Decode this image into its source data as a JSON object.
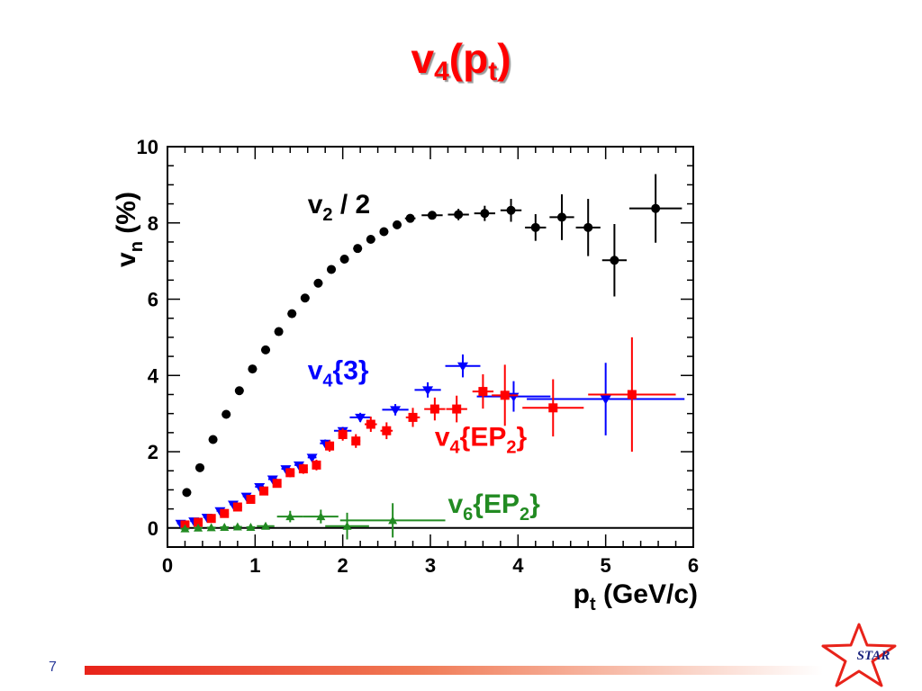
{
  "slide": {
    "title_main": "v",
    "title_sub1": "4",
    "title_paren_open": "(p",
    "title_sub2": "t",
    "title_paren_close": ")",
    "page_number": "7",
    "logo_text": "STAR"
  },
  "colors": {
    "title": "#ff0000",
    "black_series": "#000000",
    "blue_series": "#0000ff",
    "red_series": "#ff0000",
    "green_series": "#228b22"
  },
  "chart_data": {
    "type": "scatter",
    "xlim": [
      0,
      6
    ],
    "ylim": [
      -0.5,
      10
    ],
    "x_ticks": [
      "0",
      "1",
      "2",
      "3",
      "4",
      "5",
      "6"
    ],
    "y_ticks": [
      "0",
      "2",
      "4",
      "6",
      "8",
      "10"
    ],
    "xlabel": {
      "main": "p",
      "sub": "t",
      "rest": " (GeV/c)"
    },
    "ylabel": {
      "main": "v",
      "sub": "n",
      "rest": " (%)"
    },
    "reference_line_y": 0,
    "series": [
      {
        "name": {
          "main": "v",
          "sub": "2",
          "rest": " / 2"
        },
        "color": "#000000",
        "marker": "circle",
        "points": [
          {
            "x": 0.22,
            "y": 0.93,
            "xerr": 0.05,
            "yerr": 0.05
          },
          {
            "x": 0.37,
            "y": 1.58,
            "xerr": 0.05,
            "yerr": 0.05
          },
          {
            "x": 0.52,
            "y": 2.32,
            "xerr": 0.05,
            "yerr": 0.05
          },
          {
            "x": 0.67,
            "y": 2.98,
            "xerr": 0.05,
            "yerr": 0.05
          },
          {
            "x": 0.82,
            "y": 3.6,
            "xerr": 0.05,
            "yerr": 0.05
          },
          {
            "x": 0.97,
            "y": 4.17,
            "xerr": 0.05,
            "yerr": 0.05
          },
          {
            "x": 1.12,
            "y": 4.67,
            "xerr": 0.05,
            "yerr": 0.05
          },
          {
            "x": 1.27,
            "y": 5.15,
            "xerr": 0.05,
            "yerr": 0.05
          },
          {
            "x": 1.42,
            "y": 5.62,
            "xerr": 0.05,
            "yerr": 0.05
          },
          {
            "x": 1.57,
            "y": 6.03,
            "xerr": 0.05,
            "yerr": 0.05
          },
          {
            "x": 1.72,
            "y": 6.42,
            "xerr": 0.05,
            "yerr": 0.05
          },
          {
            "x": 1.87,
            "y": 6.78,
            "xerr": 0.05,
            "yerr": 0.05
          },
          {
            "x": 2.02,
            "y": 7.05,
            "xerr": 0.05,
            "yerr": 0.05
          },
          {
            "x": 2.17,
            "y": 7.33,
            "xerr": 0.05,
            "yerr": 0.05
          },
          {
            "x": 2.32,
            "y": 7.57,
            "xerr": 0.05,
            "yerr": 0.05
          },
          {
            "x": 2.47,
            "y": 7.77,
            "xerr": 0.05,
            "yerr": 0.05
          },
          {
            "x": 2.62,
            "y": 7.95,
            "xerr": 0.05,
            "yerr": 0.05
          },
          {
            "x": 2.77,
            "y": 8.12,
            "xerr": 0.06,
            "yerr": 0.06
          },
          {
            "x": 3.02,
            "y": 8.2,
            "xerr": 0.12,
            "yerr": 0.08
          },
          {
            "x": 3.32,
            "y": 8.22,
            "xerr": 0.12,
            "yerr": 0.15
          },
          {
            "x": 3.62,
            "y": 8.25,
            "xerr": 0.12,
            "yerr": 0.2
          },
          {
            "x": 3.92,
            "y": 8.33,
            "xerr": 0.12,
            "yerr": 0.3
          },
          {
            "x": 4.2,
            "y": 7.88,
            "xerr": 0.12,
            "yerr": 0.35
          },
          {
            "x": 4.5,
            "y": 8.15,
            "xerr": 0.14,
            "yerr": 0.6
          },
          {
            "x": 4.8,
            "y": 7.88,
            "xerr": 0.14,
            "yerr": 0.75
          },
          {
            "x": 5.1,
            "y": 7.02,
            "xerr": 0.14,
            "yerr": 0.95
          },
          {
            "x": 5.57,
            "y": 8.38,
            "xerr": 0.3,
            "yerr": 0.9
          }
        ]
      },
      {
        "name": {
          "main": "v",
          "sub": "4",
          "rest": "{3}"
        },
        "color": "#0000ff",
        "marker": "triangle-down",
        "points": [
          {
            "x": 0.15,
            "y": 0.12,
            "xerr": 0.04,
            "yerr": 0.05
          },
          {
            "x": 0.3,
            "y": 0.18,
            "xerr": 0.04,
            "yerr": 0.05
          },
          {
            "x": 0.45,
            "y": 0.28,
            "xerr": 0.04,
            "yerr": 0.05
          },
          {
            "x": 0.6,
            "y": 0.45,
            "xerr": 0.04,
            "yerr": 0.05
          },
          {
            "x": 0.75,
            "y": 0.62,
            "xerr": 0.04,
            "yerr": 0.05
          },
          {
            "x": 0.9,
            "y": 0.83,
            "xerr": 0.04,
            "yerr": 0.05
          },
          {
            "x": 1.05,
            "y": 1.08,
            "xerr": 0.05,
            "yerr": 0.05
          },
          {
            "x": 1.2,
            "y": 1.28,
            "xerr": 0.05,
            "yerr": 0.06
          },
          {
            "x": 1.35,
            "y": 1.55,
            "xerr": 0.05,
            "yerr": 0.07
          },
          {
            "x": 1.5,
            "y": 1.65,
            "xerr": 0.05,
            "yerr": 0.08
          },
          {
            "x": 1.65,
            "y": 1.85,
            "xerr": 0.05,
            "yerr": 0.09
          },
          {
            "x": 1.8,
            "y": 2.22,
            "xerr": 0.06,
            "yerr": 0.1
          },
          {
            "x": 2.0,
            "y": 2.55,
            "xerr": 0.1,
            "yerr": 0.1
          },
          {
            "x": 2.2,
            "y": 2.9,
            "xerr": 0.12,
            "yerr": 0.12
          },
          {
            "x": 2.6,
            "y": 3.1,
            "xerr": 0.15,
            "yerr": 0.15
          },
          {
            "x": 2.97,
            "y": 3.62,
            "xerr": 0.15,
            "yerr": 0.2
          },
          {
            "x": 3.37,
            "y": 4.25,
            "xerr": 0.2,
            "yerr": 0.3
          },
          {
            "x": 3.95,
            "y": 3.45,
            "xerr": 0.42,
            "yerr": 0.4
          },
          {
            "x": 5.0,
            "y": 3.38,
            "xerr": 0.9,
            "yerr": 0.95
          }
        ]
      },
      {
        "name": {
          "main": "v",
          "sub": "4",
          "rest": "{EP",
          "sub2": "2",
          "rest2": "}"
        },
        "color": "#ff0000",
        "marker": "square",
        "points": [
          {
            "x": 0.2,
            "y": 0.08,
            "xerr": 0.05,
            "yerr": 0.05
          },
          {
            "x": 0.35,
            "y": 0.15,
            "xerr": 0.05,
            "yerr": 0.05
          },
          {
            "x": 0.5,
            "y": 0.25,
            "xerr": 0.05,
            "yerr": 0.05
          },
          {
            "x": 0.65,
            "y": 0.38,
            "xerr": 0.05,
            "yerr": 0.05
          },
          {
            "x": 0.8,
            "y": 0.55,
            "xerr": 0.05,
            "yerr": 0.05
          },
          {
            "x": 0.95,
            "y": 0.75,
            "xerr": 0.05,
            "yerr": 0.06
          },
          {
            "x": 1.1,
            "y": 0.97,
            "xerr": 0.05,
            "yerr": 0.08
          },
          {
            "x": 1.25,
            "y": 1.17,
            "xerr": 0.05,
            "yerr": 0.1
          },
          {
            "x": 1.4,
            "y": 1.45,
            "xerr": 0.05,
            "yerr": 0.12
          },
          {
            "x": 1.55,
            "y": 1.55,
            "xerr": 0.05,
            "yerr": 0.13
          },
          {
            "x": 1.7,
            "y": 1.65,
            "xerr": 0.05,
            "yerr": 0.14
          },
          {
            "x": 1.85,
            "y": 2.15,
            "xerr": 0.05,
            "yerr": 0.15
          },
          {
            "x": 2.0,
            "y": 2.45,
            "xerr": 0.05,
            "yerr": 0.16
          },
          {
            "x": 2.15,
            "y": 2.28,
            "xerr": 0.05,
            "yerr": 0.18
          },
          {
            "x": 2.32,
            "y": 2.72,
            "xerr": 0.07,
            "yerr": 0.2
          },
          {
            "x": 2.5,
            "y": 2.55,
            "xerr": 0.07,
            "yerr": 0.22
          },
          {
            "x": 2.8,
            "y": 2.9,
            "xerr": 0.08,
            "yerr": 0.25
          },
          {
            "x": 3.05,
            "y": 3.12,
            "xerr": 0.12,
            "yerr": 0.3
          },
          {
            "x": 3.3,
            "y": 3.12,
            "xerr": 0.12,
            "yerr": 0.35
          },
          {
            "x": 3.6,
            "y": 3.58,
            "xerr": 0.12,
            "yerr": 0.45
          },
          {
            "x": 3.85,
            "y": 3.48,
            "xerr": 0.15,
            "yerr": 0.8
          },
          {
            "x": 4.4,
            "y": 3.15,
            "xerr": 0.35,
            "yerr": 0.75
          },
          {
            "x": 5.3,
            "y": 3.5,
            "xerr": 0.5,
            "yerr": 1.5
          }
        ]
      },
      {
        "name": {
          "main": "v",
          "sub": "6",
          "rest": "{EP",
          "sub2": "2",
          "rest2": "}"
        },
        "color": "#228b22",
        "marker": "triangle-up",
        "points": [
          {
            "x": 0.2,
            "y": -0.02,
            "xerr": 0.05,
            "yerr": 0.04
          },
          {
            "x": 0.35,
            "y": 0.0,
            "xerr": 0.05,
            "yerr": 0.04
          },
          {
            "x": 0.5,
            "y": 0.01,
            "xerr": 0.05,
            "yerr": 0.04
          },
          {
            "x": 0.65,
            "y": 0.02,
            "xerr": 0.05,
            "yerr": 0.05
          },
          {
            "x": 0.8,
            "y": 0.03,
            "xerr": 0.05,
            "yerr": 0.05
          },
          {
            "x": 0.95,
            "y": 0.02,
            "xerr": 0.05,
            "yerr": 0.06
          },
          {
            "x": 1.12,
            "y": 0.05,
            "xerr": 0.1,
            "yerr": 0.07
          },
          {
            "x": 1.4,
            "y": 0.3,
            "xerr": 0.15,
            "yerr": 0.15
          },
          {
            "x": 1.75,
            "y": 0.3,
            "xerr": 0.2,
            "yerr": 0.18
          },
          {
            "x": 2.05,
            "y": 0.05,
            "xerr": 0.25,
            "yerr": 0.35
          },
          {
            "x": 2.57,
            "y": 0.2,
            "xerr": 0.6,
            "yerr": 0.45
          }
        ]
      }
    ],
    "annotations": [
      {
        "series": 0,
        "text_x": 1.6,
        "text_y": 8.25
      },
      {
        "series": 1,
        "text_x": 1.6,
        "text_y": 3.9
      },
      {
        "series": 2,
        "text_x": 3.05,
        "text_y": 2.15
      },
      {
        "series": 3,
        "text_x": 3.2,
        "text_y": 0.4
      }
    ]
  }
}
